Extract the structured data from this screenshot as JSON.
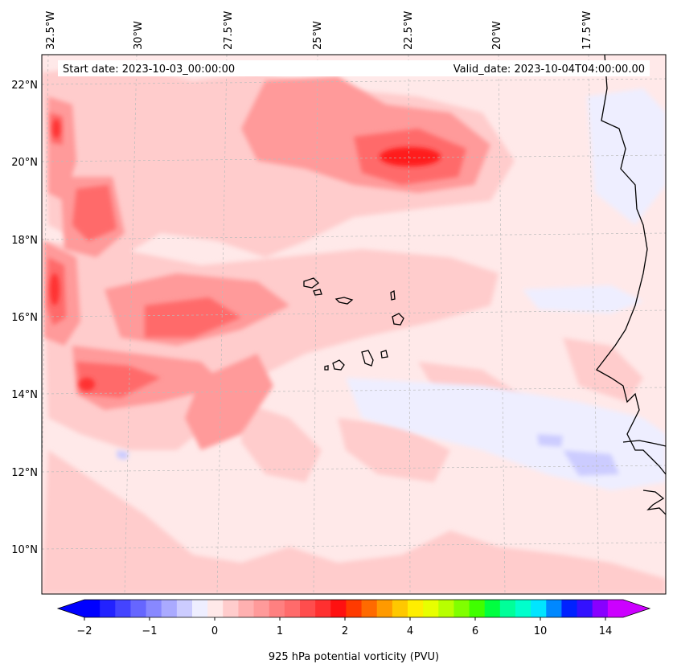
{
  "map": {
    "start_date": "Start date: 2023-10-03_00:00:00",
    "valid_date": "Valid_date: 2023-10-04T04:00:00.00",
    "lon_labels": [
      "32.5°W",
      "30°W",
      "27.5°W",
      "25°W",
      "22.5°W",
      "20°W",
      "17.5°W"
    ],
    "lat_labels": [
      "22°N",
      "20°N",
      "18°N",
      "16°N",
      "14°N",
      "12°N",
      "10°N"
    ],
    "field": "925 hPa potential vorticity",
    "colors": {
      "background": "#ffe9e9",
      "light_red": "#ffcccc",
      "mid_red": "#ff9a9a",
      "strong_red": "#ff6b6b",
      "core_red": "#ff1f1f",
      "light_blue": "#eeeeff",
      "mid_blue": "#ccccff",
      "coast": "#000000"
    }
  },
  "colorbar": {
    "label": "925 hPa potential vorticity (PVU)",
    "tick_labels": [
      "−2",
      "−1",
      "0",
      "1",
      "2",
      "4",
      "6",
      "10",
      "14"
    ],
    "colors": [
      "#0000ff",
      "#2222ff",
      "#4444ff",
      "#6666ff",
      "#8888ff",
      "#aaaaff",
      "#ccccff",
      "#eeeeff",
      "#ffe9e9",
      "#ffcccc",
      "#ffb0b0",
      "#ff9a9a",
      "#ff8080",
      "#ff6b6b",
      "#ff4d4d",
      "#ff3030",
      "#ff1010",
      "#ff3a00",
      "#ff6a00",
      "#ff9a00",
      "#ffc800",
      "#ffee00",
      "#e8ff00",
      "#b8ff00",
      "#80ff00",
      "#40ff00",
      "#00ff40",
      "#00ff99",
      "#00ffcc",
      "#00e5ff",
      "#0088ff",
      "#0022ff",
      "#3311ff",
      "#8800ff",
      "#cc00ff"
    ]
  }
}
